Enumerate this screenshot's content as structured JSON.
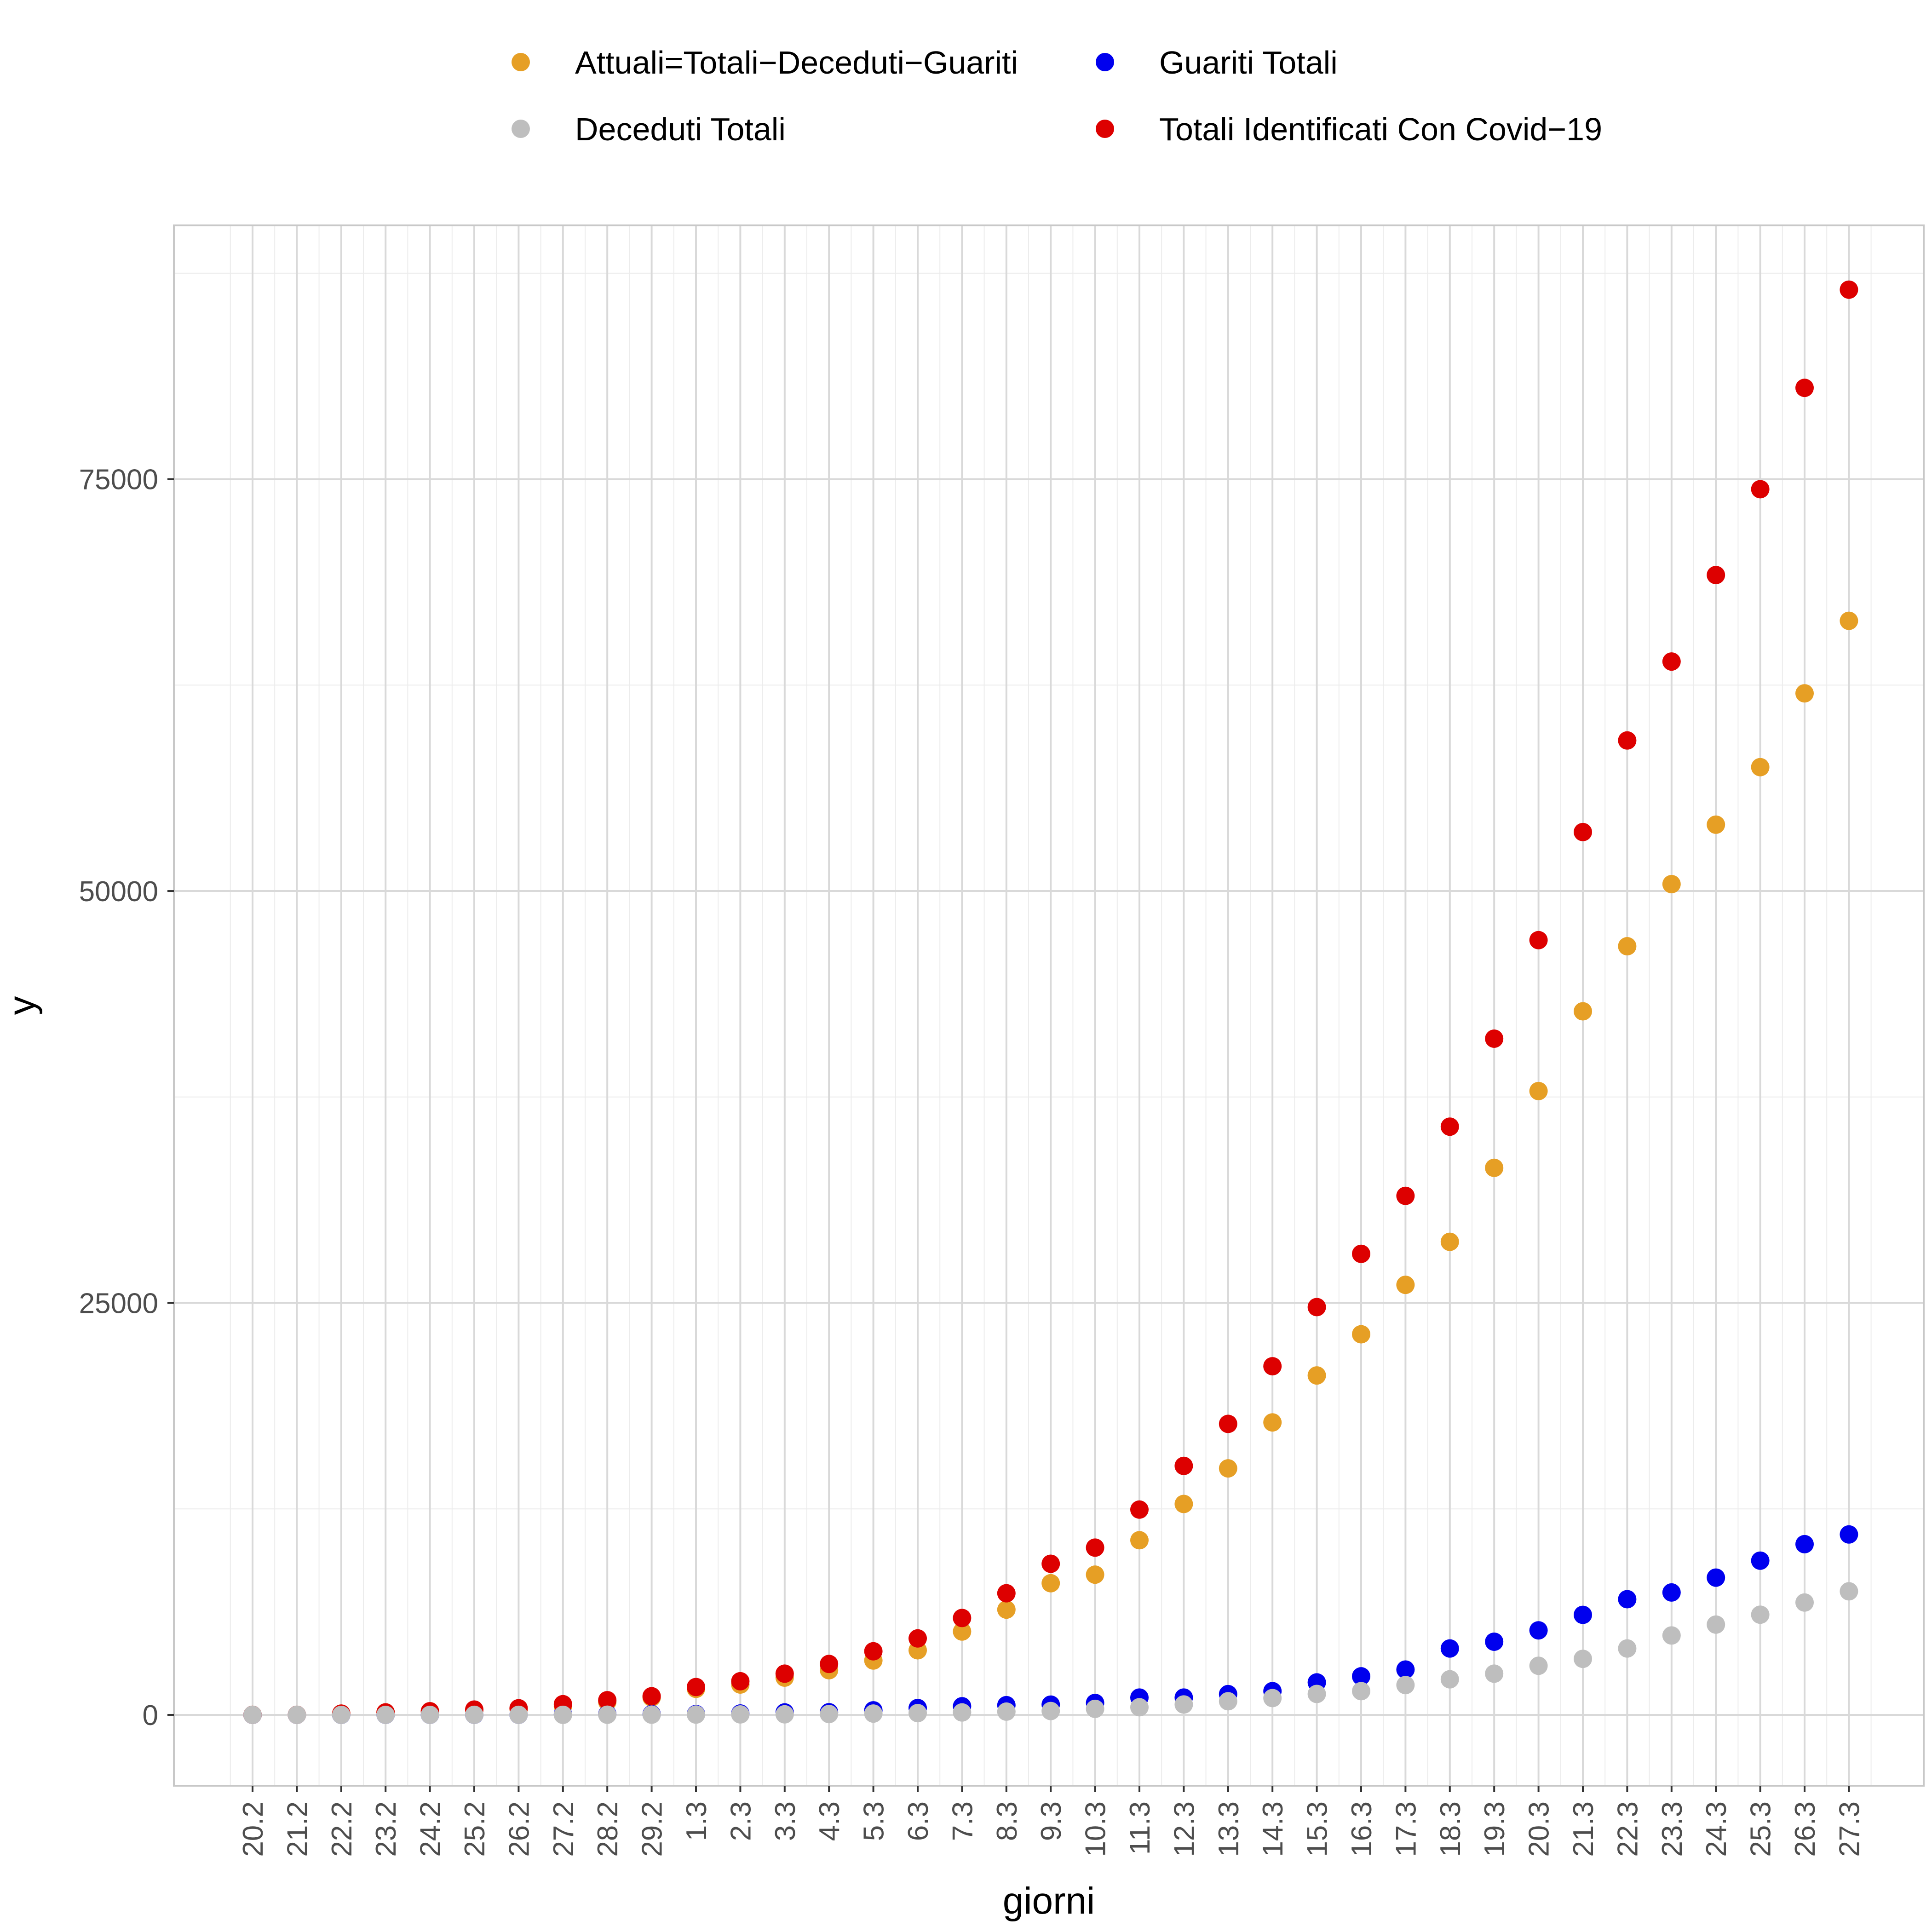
{
  "chart_data": {
    "type": "scatter",
    "title": "",
    "xlabel": "giorni",
    "ylabel": "y",
    "categories": [
      "20.2",
      "21.2",
      "22.2",
      "23.2",
      "24.2",
      "25.2",
      "26.2",
      "27.2",
      "28.2",
      "29.2",
      "1.3",
      "2.3",
      "3.3",
      "4.3",
      "5.3",
      "6.3",
      "7.3",
      "8.3",
      "9.3",
      "10.3",
      "11.3",
      "12.3",
      "13.3",
      "14.3",
      "15.3",
      "16.3",
      "17.3",
      "18.3",
      "19.3",
      "20.3",
      "21.3",
      "22.3",
      "23.3",
      "24.3",
      "25.3",
      "26.3",
      "27.3"
    ],
    "ylim": [
      -4300,
      90400
    ],
    "yticks": [
      0,
      25000,
      50000,
      75000
    ],
    "ytick_labels": [
      "0",
      "25000",
      "50000",
      "75000"
    ],
    "grid": true,
    "legend_position": "top",
    "series": [
      {
        "name": "Attuali=Totali−Deceduti−Guariti",
        "color": "#E69F25",
        "values": [
          3,
          3,
          76,
          150,
          220,
          310,
          370,
          530,
          790,
          1050,
          1580,
          1840,
          2260,
          2710,
          3300,
          3920,
          5060,
          6390,
          7990,
          8510,
          10600,
          12800,
          14960,
          17750,
          20600,
          23100,
          26100,
          28710,
          33200,
          37860,
          42700,
          46650,
          50420,
          54030,
          57520,
          62000,
          66400
        ]
      },
      {
        "name": "Guariti Totali",
        "color": "#0000EE",
        "values": [
          0,
          0,
          0,
          1,
          1,
          1,
          3,
          45,
          46,
          46,
          50,
          83,
          149,
          160,
          276,
          414,
          523,
          589,
          622,
          724,
          1050,
          1050,
          1260,
          1440,
          1970,
          2340,
          2750,
          4030,
          4440,
          5130,
          6070,
          7020,
          7430,
          8330,
          9360,
          10360,
          10950
        ]
      },
      {
        "name": "Deceduti Totali",
        "color": "#BEBEBE",
        "values": [
          0,
          0,
          0,
          1,
          1,
          2,
          2,
          3,
          10,
          14,
          21,
          29,
          34,
          52,
          79,
          107,
          148,
          197,
          233,
          366,
          463,
          631,
          827,
          1020,
          1270,
          1440,
          1810,
          2160,
          2500,
          2980,
          3400,
          4030,
          4820,
          5480,
          6080,
          6820,
          7500
        ]
      },
      {
        "name": "Totali Identificati Con Covid−19",
        "color": "#DD0000",
        "values": [
          3,
          3,
          76,
          150,
          220,
          320,
          400,
          650,
          890,
          1130,
          1690,
          2040,
          2500,
          3090,
          3860,
          4640,
          5880,
          7380,
          9170,
          10150,
          12460,
          15110,
          17660,
          21160,
          24750,
          27980,
          31500,
          35700,
          41040,
          47020,
          53580,
          59140,
          63930,
          69180,
          74390,
          80540,
          86500
        ]
      }
    ]
  }
}
